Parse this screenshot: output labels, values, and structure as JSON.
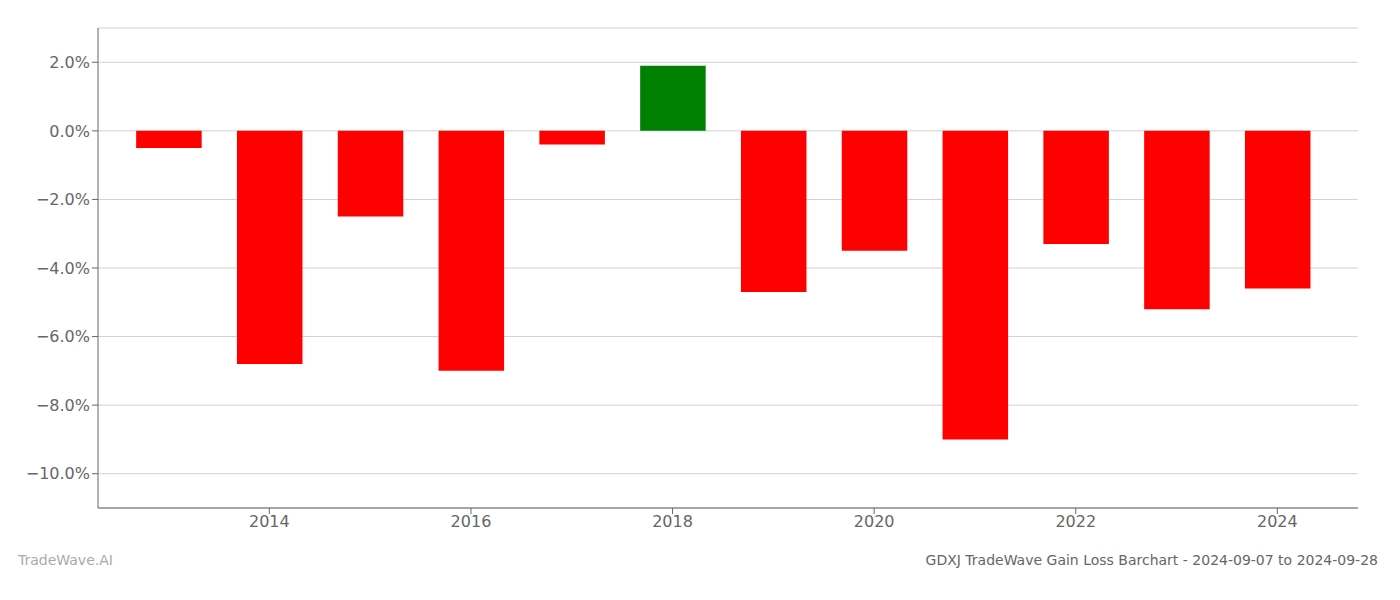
{
  "chart_data": {
    "type": "bar",
    "title": "GDXJ TradeWave Gain Loss Barchart - 2024-09-07 to 2024-09-28",
    "annotations": [
      "TradeWave.AI"
    ],
    "x": [
      2013,
      2014,
      2015,
      2016,
      2017,
      2018,
      2019,
      2020,
      2021,
      2022,
      2023,
      2024
    ],
    "values": [
      -0.5,
      -6.8,
      -2.5,
      -7.0,
      -0.4,
      1.9,
      -4.7,
      -3.5,
      -9.0,
      -3.3,
      -5.2,
      -4.6
    ],
    "colors": [
      "#ff0000",
      "#ff0000",
      "#ff0000",
      "#ff0000",
      "#ff0000",
      "#008000",
      "#ff0000",
      "#ff0000",
      "#ff0000",
      "#ff0000",
      "#ff0000",
      "#ff0000"
    ],
    "xlim": [
      2012.3,
      2024.8
    ],
    "xticks": [
      2014,
      2016,
      2018,
      2020,
      2022,
      2024
    ],
    "ylim": [
      -11,
      3
    ],
    "yticks": [
      {
        "value": -10,
        "label": "−10.0%"
      },
      {
        "value": -8,
        "label": "−8.0%"
      },
      {
        "value": -6,
        "label": "−6.0%"
      },
      {
        "value": -4,
        "label": "−4.0%"
      },
      {
        "value": -2,
        "label": "−2.0%"
      },
      {
        "value": 0,
        "label": "0.0%"
      },
      {
        "value": 2,
        "label": "2.0%"
      }
    ],
    "grid": true
  }
}
